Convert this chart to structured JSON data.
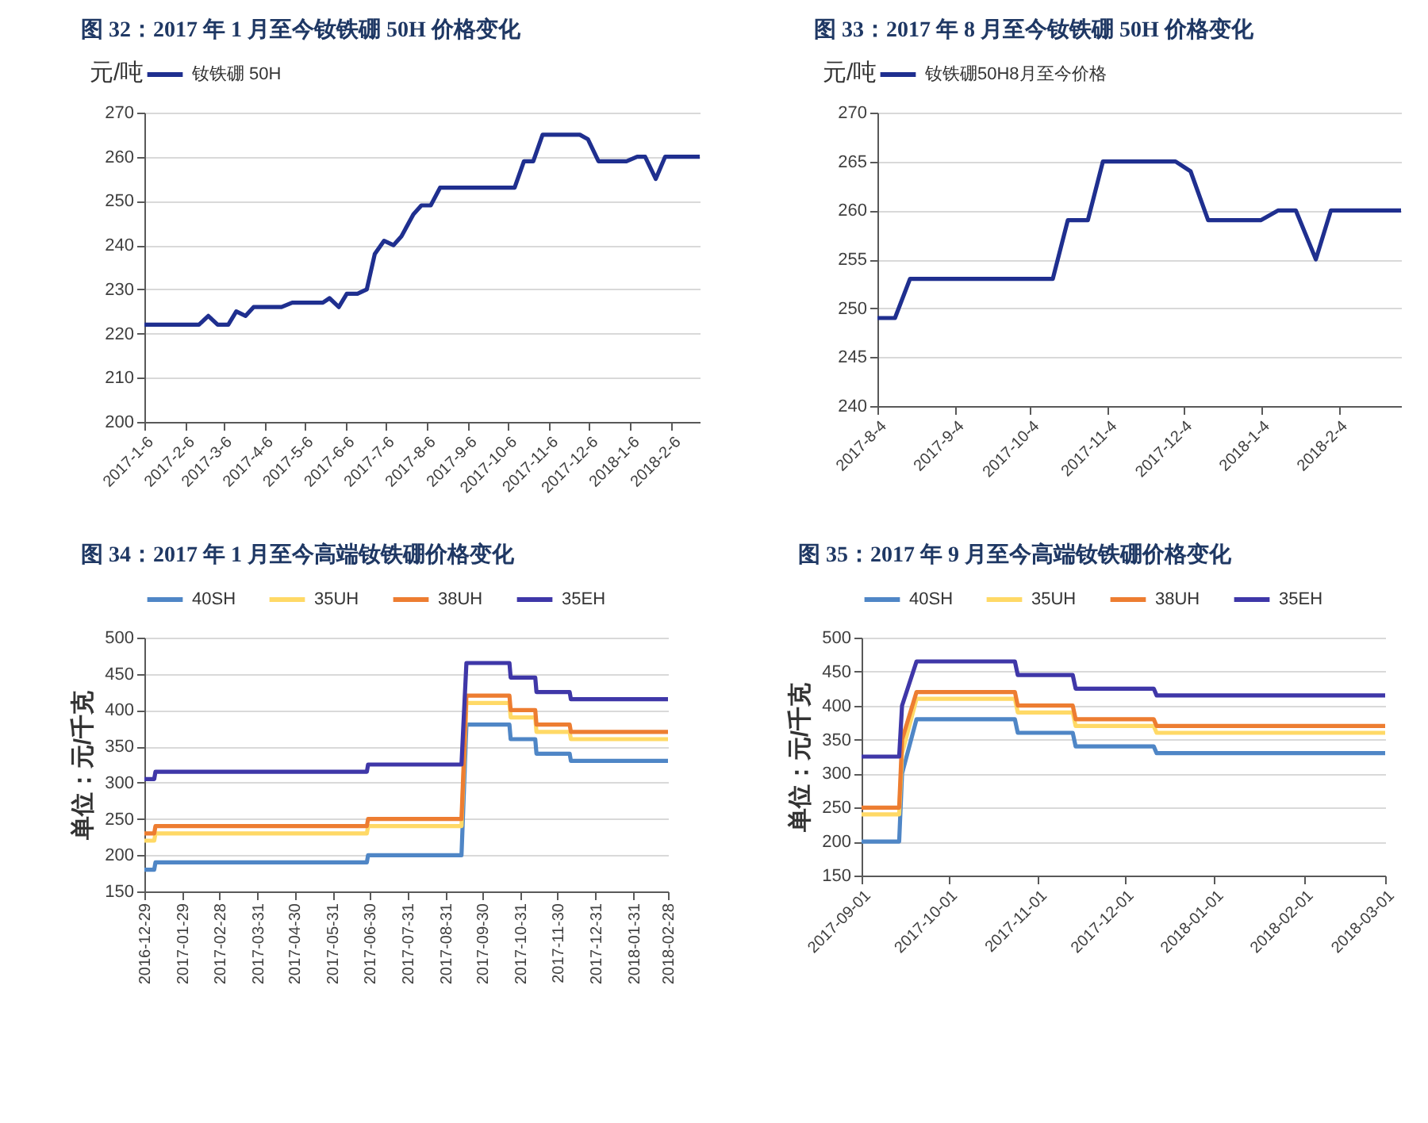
{
  "chart_data": [
    {
      "type": "line",
      "title": "图 32：2017 年 1 月至今钕铁硼 50H 价格变化",
      "ylabel": "元/吨",
      "legend": "top",
      "grid": "y",
      "marker": "none",
      "line_style": "solid",
      "xlim": [
        "2017-01-06",
        "2018-02-27"
      ],
      "xticks": [
        {
          "value": "2017-01-06",
          "label": "2017-1-6"
        },
        {
          "value": "2017-02-06",
          "label": "2017-2-6"
        },
        {
          "value": "2017-03-06",
          "label": "2017-3-6"
        },
        {
          "value": "2017-04-06",
          "label": "2017-4-6"
        },
        {
          "value": "2017-05-06",
          "label": "2017-5-6"
        },
        {
          "value": "2017-06-06",
          "label": "2017-6-6"
        },
        {
          "value": "2017-07-06",
          "label": "2017-7-6"
        },
        {
          "value": "2017-08-06",
          "label": "2017-8-6"
        },
        {
          "value": "2017-09-06",
          "label": "2017-9-6"
        },
        {
          "value": "2017-10-06",
          "label": "2017-10-6"
        },
        {
          "value": "2017-11-06",
          "label": "2017-11-6"
        },
        {
          "value": "2017-12-06",
          "label": "2017-12-6"
        },
        {
          "value": "2018-01-06",
          "label": "2018-1-6"
        },
        {
          "value": "2018-02-06",
          "label": "2018-2-6"
        }
      ],
      "ylim": [
        200,
        270
      ],
      "yticks": [
        200,
        210,
        220,
        230,
        240,
        250,
        260,
        270
      ],
      "x": [
        "2017-01-06",
        "2017-02-16",
        "2017-02-23",
        "2017-03-02",
        "2017-03-10",
        "2017-03-16",
        "2017-03-23",
        "2017-03-29",
        "2017-04-19",
        "2017-04-27",
        "2017-05-20",
        "2017-05-25",
        "2017-06-01",
        "2017-06-07",
        "2017-06-15",
        "2017-06-22",
        "2017-06-28",
        "2017-07-05",
        "2017-07-12",
        "2017-07-18",
        "2017-07-27",
        "2017-08-02",
        "2017-08-09",
        "2017-08-16",
        "2017-10-11",
        "2017-10-18",
        "2017-10-25",
        "2017-11-01",
        "2017-11-29",
        "2017-12-05",
        "2017-12-13",
        "2018-01-03",
        "2018-01-11",
        "2018-01-17",
        "2018-01-25",
        "2018-02-01",
        "2018-02-27"
      ],
      "series": [
        {
          "name": "钕铁硼 50H",
          "color": "#1f2f8f",
          "values": [
            222,
            222,
            224,
            222,
            222,
            225,
            224,
            226,
            226,
            227,
            227,
            228,
            226,
            229,
            229,
            230,
            238,
            241,
            240,
            242,
            247,
            249,
            249,
            253,
            253,
            259,
            259,
            265,
            265,
            264,
            259,
            259,
            260,
            260,
            255,
            260,
            260
          ]
        }
      ]
    },
    {
      "type": "line",
      "title": "图 33：2017 年 8 月至今钕铁硼 50H 价格变化",
      "ylabel": "元/吨",
      "legend": "top",
      "grid": "y",
      "marker": "none",
      "line_style": "solid",
      "xlim": [
        "2017-08-04",
        "2018-03-01"
      ],
      "xticks": [
        {
          "value": "2017-08-04",
          "label": "2017-8-4"
        },
        {
          "value": "2017-09-04",
          "label": "2017-9-4"
        },
        {
          "value": "2017-10-04",
          "label": "2017-10-4"
        },
        {
          "value": "2017-11-04",
          "label": "2017-11-4"
        },
        {
          "value": "2017-12-04",
          "label": "2017-12-4"
        },
        {
          "value": "2018-01-04",
          "label": "2018-1-4"
        },
        {
          "value": "2018-02-04",
          "label": "2018-2-4"
        }
      ],
      "ylim": [
        240,
        270
      ],
      "yticks": [
        240,
        245,
        250,
        255,
        260,
        265,
        270
      ],
      "x": [
        "2017-08-04",
        "2017-08-11",
        "2017-08-17",
        "2017-10-13",
        "2017-10-19",
        "2017-10-27",
        "2017-11-02",
        "2017-12-01",
        "2017-12-07",
        "2017-12-14",
        "2018-01-04",
        "2018-01-11",
        "2018-01-18",
        "2018-01-26",
        "2018-02-01",
        "2018-03-01"
      ],
      "series": [
        {
          "name": "钕铁硼50H8月至今价格",
          "color": "#1f2f8f",
          "values": [
            249,
            249,
            253,
            253,
            259,
            259,
            265,
            265,
            264,
            259,
            259,
            260,
            260,
            255,
            260,
            260
          ]
        }
      ]
    },
    {
      "type": "line",
      "title": "图 34：2017 年 1 月至今高端钕铁硼价格变化",
      "ylabel": "单位：元/千克",
      "legend": "top",
      "grid": "y",
      "marker": "none",
      "line_style": "solid",
      "xlim": [
        "2016-12-29",
        "2018-02-28"
      ],
      "xticks": [
        "2016-12-29",
        "2017-01-29",
        "2017-02-28",
        "2017-03-31",
        "2017-04-30",
        "2017-05-31",
        "2017-06-30",
        "2017-07-31",
        "2017-08-31",
        "2017-09-30",
        "2017-10-31",
        "2017-11-30",
        "2017-12-31",
        "2018-01-31",
        "2018-02-28"
      ],
      "ylim": [
        150,
        500
      ],
      "yticks": [
        150,
        200,
        250,
        300,
        350,
        400,
        450,
        500
      ],
      "x": [
        "2016-12-29",
        "2017-01-06",
        "2017-01-07",
        "2017-06-28",
        "2017-06-29",
        "2017-09-13",
        "2017-09-17",
        "2017-10-22",
        "2017-10-23",
        "2017-11-12",
        "2017-11-13",
        "2017-12-10",
        "2017-12-11",
        "2018-02-28"
      ],
      "series": [
        {
          "name": "40SH",
          "color": "#4f86c6",
          "values": [
            180,
            180,
            190,
            190,
            200,
            200,
            380,
            380,
            360,
            360,
            340,
            340,
            330,
            330
          ]
        },
        {
          "name": "35UH",
          "color": "#ffd966",
          "values": [
            220,
            220,
            230,
            230,
            240,
            240,
            410,
            410,
            390,
            390,
            370,
            370,
            360,
            360
          ]
        },
        {
          "name": "38UH",
          "color": "#ed7d31",
          "values": [
            230,
            230,
            240,
            240,
            250,
            250,
            420,
            420,
            400,
            400,
            380,
            380,
            370,
            370
          ]
        },
        {
          "name": "35EH",
          "color": "#3f37a8",
          "values": [
            305,
            305,
            315,
            315,
            325,
            325,
            465,
            465,
            445,
            445,
            425,
            425,
            415,
            415
          ]
        }
      ]
    },
    {
      "type": "line",
      "title": "图 35：2017 年 9 月至今高端钕铁硼价格变化",
      "ylabel": "单位：元/千克",
      "legend": "top",
      "grid": "y",
      "marker": "none",
      "line_style": "solid",
      "xlim": [
        "2017-09-01",
        "2018-03-01"
      ],
      "xticks": [
        "2017-09-01",
        "2017-10-01",
        "2017-11-01",
        "2017-12-01",
        "2018-01-01",
        "2018-02-01",
        "2018-03-01"
      ],
      "ylim": [
        150,
        500
      ],
      "yticks": [
        150,
        200,
        250,
        300,
        350,
        400,
        450,
        500
      ],
      "x": [
        "2017-09-01",
        "2017-09-14",
        "2017-09-15",
        "2017-09-20",
        "2017-10-24",
        "2017-10-25",
        "2017-11-13",
        "2017-11-14",
        "2017-12-11",
        "2017-12-12",
        "2018-03-01"
      ],
      "series": [
        {
          "name": "40SH",
          "color": "#4f86c6",
          "values": [
            200,
            200,
            300,
            380,
            380,
            360,
            360,
            340,
            340,
            330,
            330
          ]
        },
        {
          "name": "35UH",
          "color": "#ffd966",
          "values": [
            240,
            240,
            330,
            410,
            410,
            390,
            390,
            370,
            370,
            360,
            360
          ]
        },
        {
          "name": "38UH",
          "color": "#ed7d31",
          "values": [
            250,
            250,
            350,
            420,
            420,
            400,
            400,
            380,
            380,
            370,
            370
          ]
        },
        {
          "name": "35EH",
          "color": "#3f37a8",
          "values": [
            325,
            325,
            400,
            465,
            465,
            445,
            445,
            425,
            425,
            415,
            415
          ]
        }
      ]
    }
  ]
}
